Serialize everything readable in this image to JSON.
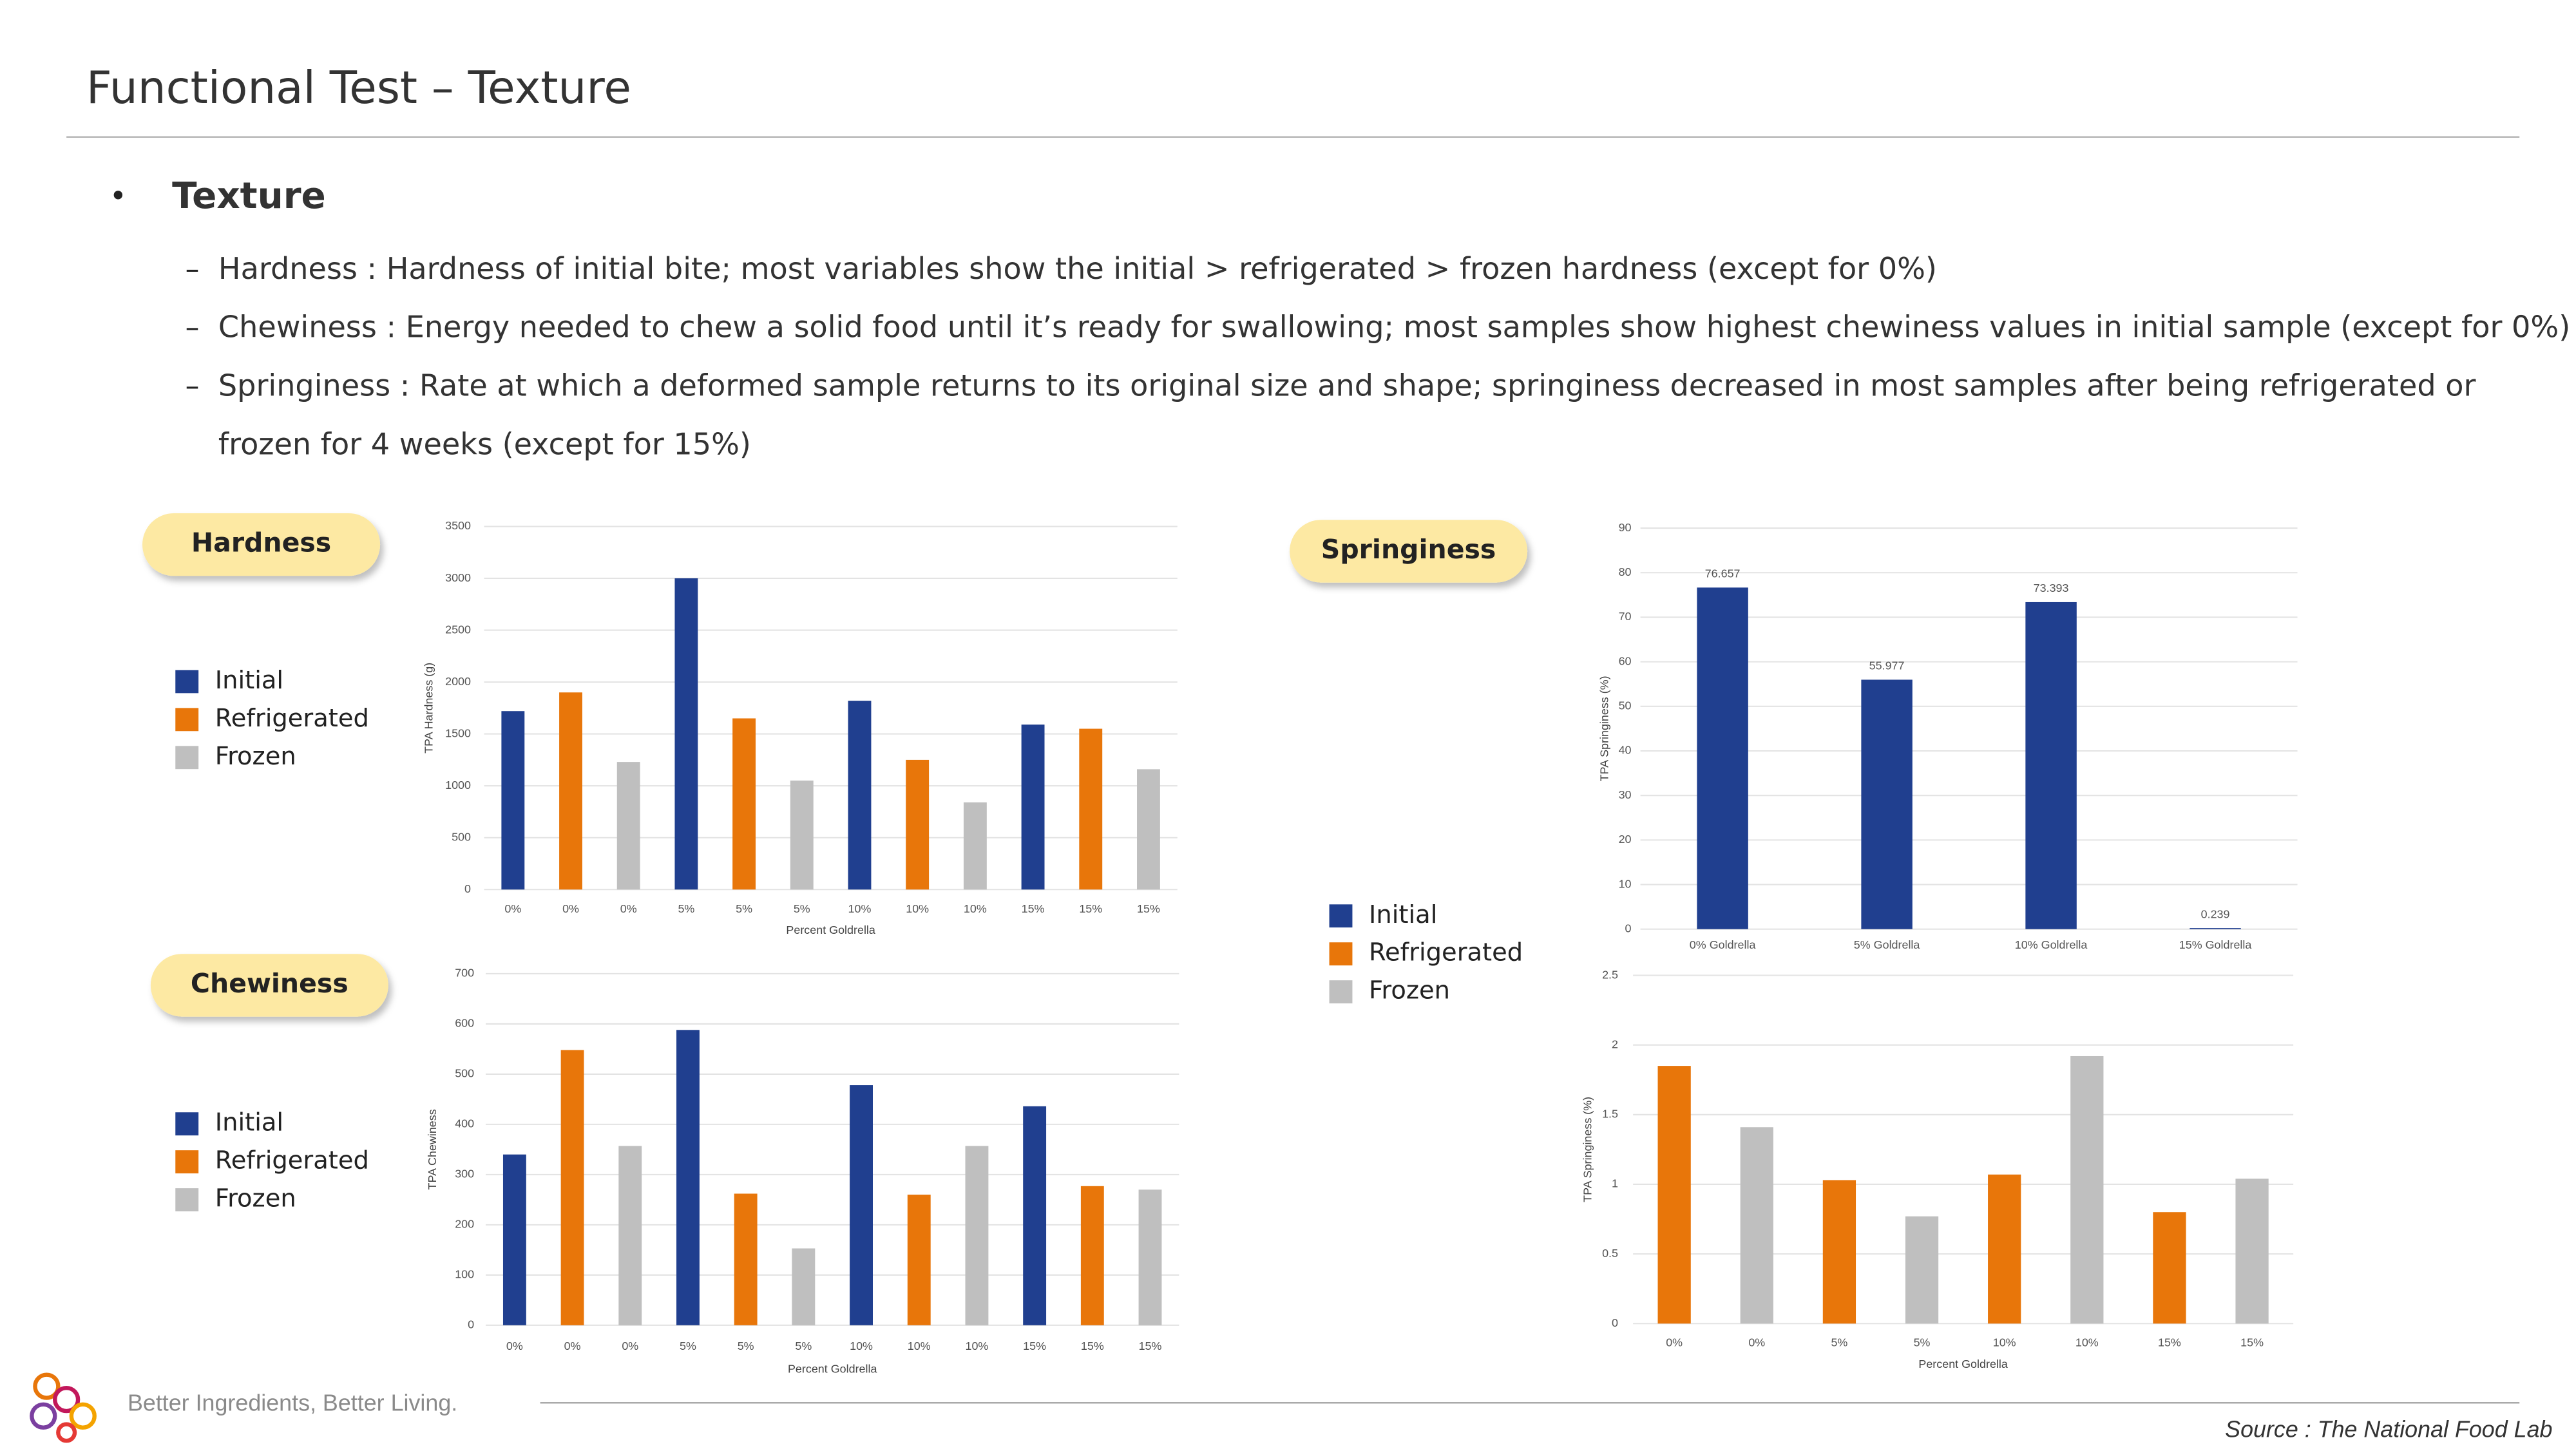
{
  "header": {
    "title": "Functional Test – Texture"
  },
  "section": {
    "bullet": "•",
    "title": "Texture",
    "items": [
      {
        "dash": "–",
        "lines": [
          "Hardness : Hardness of initial bite; most variables show the initial > refrigerated > frozen hardness (except for 0%)"
        ]
      },
      {
        "dash": "–",
        "lines": [
          "Chewiness : Energy needed to chew a solid food until it’s ready for swallowing; most samples show highest chewiness values in initial sample (except for 0%)"
        ]
      },
      {
        "dash": "–",
        "lines": [
          "Springiness : Rate at which a deformed sample returns to its original size and shape; springiness decreased in most samples after being refrigerated or",
          "frozen for 4 weeks (except for 15%)"
        ]
      }
    ]
  },
  "chart_data": [
    {
      "type": "bar",
      "title": "Hardness",
      "xlabel": "Percent Goldrella",
      "ylabel": "TPA Hardness (g)",
      "categories": [
        "0%",
        "0%",
        "0%",
        "5%",
        "5%",
        "5%",
        "10%",
        "10%",
        "10%",
        "15%",
        "15%",
        "15%"
      ],
      "series": [
        {
          "name": "Initial",
          "color": "#203f8f",
          "values": [
            1720,
            null,
            null,
            3000,
            null,
            null,
            1820,
            null,
            null,
            1590,
            null,
            null
          ]
        },
        {
          "name": "Refrigerated",
          "color": "#e8760a",
          "values": [
            null,
            1900,
            null,
            null,
            1650,
            null,
            null,
            1250,
            null,
            null,
            1550,
            null
          ]
        },
        {
          "name": "Frozen",
          "color": "#bfbfbf",
          "values": [
            null,
            null,
            1230,
            null,
            null,
            1050,
            null,
            null,
            840,
            null,
            null,
            1160
          ]
        }
      ],
      "ylim": [
        0,
        3500
      ],
      "yticks": [
        0,
        500,
        1000,
        1500,
        2000,
        2500,
        3000,
        3500
      ],
      "grid": true
    },
    {
      "type": "bar",
      "title": "Chewiness",
      "xlabel": "Percent Goldrella",
      "ylabel": "TPA Chewiness",
      "categories": [
        "0%",
        "0%",
        "0%",
        "5%",
        "5%",
        "5%",
        "10%",
        "10%",
        "10%",
        "15%",
        "15%",
        "15%"
      ],
      "series": [
        {
          "name": "Initial",
          "color": "#203f8f",
          "values": [
            340,
            null,
            null,
            588,
            null,
            null,
            478,
            null,
            null,
            436,
            null,
            null
          ]
        },
        {
          "name": "Refrigerated",
          "color": "#e8760a",
          "values": [
            null,
            548,
            null,
            null,
            262,
            null,
            null,
            260,
            null,
            null,
            277,
            null
          ]
        },
        {
          "name": "Frozen",
          "color": "#bfbfbf",
          "values": [
            null,
            null,
            357,
            null,
            null,
            153,
            null,
            null,
            357,
            null,
            null,
            270
          ]
        }
      ],
      "ylim": [
        0,
        700
      ],
      "yticks": [
        0,
        100,
        200,
        300,
        400,
        500,
        600,
        700
      ],
      "grid": true
    },
    {
      "type": "bar",
      "title": "Springiness",
      "ylabel": "TPA Springiness (%)",
      "categories": [
        "0% Goldrella",
        "5% Goldrella",
        "10% Goldrella",
        "15% Goldrella"
      ],
      "series": [
        {
          "name": "Initial",
          "color": "#203f8f",
          "values": [
            76.657,
            55.977,
            73.393,
            0.239
          ]
        }
      ],
      "data_labels": true,
      "ylim": [
        0,
        90
      ],
      "yticks": [
        0,
        10,
        20,
        30,
        40,
        50,
        60,
        70,
        80,
        90
      ],
      "grid": true
    },
    {
      "type": "bar",
      "xlabel": "Percent Goldrella",
      "ylabel": "TPA Springiness (%)",
      "categories": [
        "0%",
        "0%",
        "5%",
        "5%",
        "10%",
        "10%",
        "15%",
        "15%"
      ],
      "series": [
        {
          "name": "Refrigerated",
          "color": "#e8760a",
          "values": [
            1.85,
            null,
            1.03,
            null,
            1.07,
            null,
            0.8,
            null
          ]
        },
        {
          "name": "Frozen",
          "color": "#bfbfbf",
          "values": [
            null,
            1.41,
            null,
            0.77,
            null,
            1.92,
            null,
            1.04
          ]
        }
      ],
      "ylim": [
        0,
        2.5
      ],
      "yticks": [
        0,
        0.5,
        1,
        1.5,
        2,
        2.5
      ],
      "grid": true
    }
  ],
  "footer": {
    "tagline": "Better Ingredients, Better Living.",
    "source": "Source : The National Food Lab"
  }
}
